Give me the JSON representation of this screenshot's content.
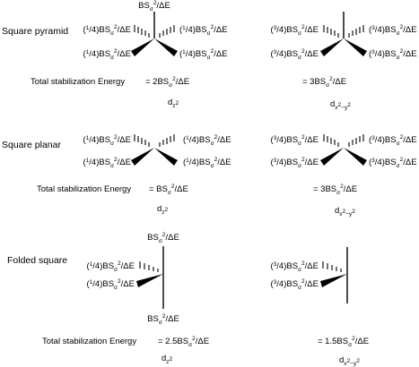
{
  "sections": {
    "square_pyramid": "Square pyramid",
    "square_planar": "Square planar",
    "folded_square": "Folded square"
  },
  "labels": {
    "quarter": "(1/4)BSσ2/ΔE",
    "three_quarter": "(3/4)BSσ2/ΔE",
    "apical": "BSσ2/ΔE"
  },
  "total_label": "Total stabilization Energy",
  "energies": {
    "pyramid_z2": "= 2BSσ2/ΔE",
    "pyramid_x2y2": "= 3BSσ2/ΔE",
    "planar_z2": "= BSσ2/ΔE",
    "planar_x2y2": "= 3BSσ2/ΔE",
    "folded_z2": "= 2.5BSσ2/ΔE",
    "folded_x2y2": "= 1.5BSσ2/ΔE"
  },
  "orbitals": {
    "z2": "dz2",
    "x2y2": "dx2−y2"
  }
}
